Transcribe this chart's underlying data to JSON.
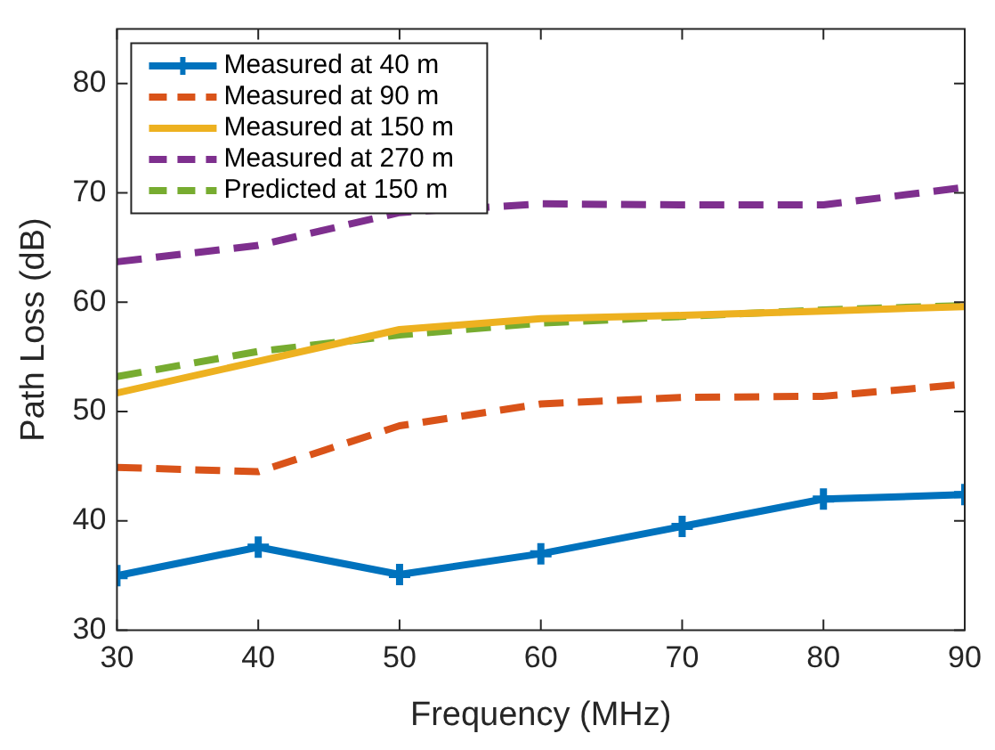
{
  "chart_data": {
    "type": "line",
    "xlabel": "Frequency (MHz)",
    "ylabel": "Path Loss (dB)",
    "x": [
      30,
      40,
      50,
      60,
      70,
      80,
      90
    ],
    "series": [
      {
        "name": "Measured at 40 m",
        "color": "#0072bd",
        "values": [
          35,
          37.6,
          35.1,
          37,
          39.5,
          42,
          42.4
        ],
        "marker": "cross",
        "line_style": "solid"
      },
      {
        "name": "Measured at 90 m",
        "color": "#d95319",
        "values": [
          44.9,
          44.5,
          48.7,
          50.7,
          51.3,
          51.4,
          52.5
        ],
        "marker": "none",
        "line_style": "dashed"
      },
      {
        "name": "Measured at 150 m",
        "color": "#edb120",
        "values": [
          51.7,
          54.6,
          57.5,
          58.5,
          58.8,
          59.2,
          59.6
        ],
        "marker": "none",
        "line_style": "solid"
      },
      {
        "name": "Measured at 270 m",
        "color": "#7e2f8e",
        "values": [
          63.7,
          65.2,
          68.2,
          69,
          68.9,
          68.9,
          70.5
        ],
        "marker": "none",
        "line_style": "dashed"
      },
      {
        "name": "Predicted at 150 m",
        "color": "#77ac30",
        "values": [
          53.2,
          55.5,
          57,
          58.1,
          58.7,
          59.3,
          59.7
        ],
        "marker": "none",
        "line_style": "dashed"
      }
    ],
    "xlim": [
      30,
      90
    ],
    "xticks": [
      30,
      40,
      50,
      60,
      70,
      80,
      90
    ],
    "ylim": [
      30,
      85
    ],
    "yticks": [
      30,
      40,
      50,
      60,
      70,
      80
    ],
    "grid": false,
    "legend": "top left"
  }
}
